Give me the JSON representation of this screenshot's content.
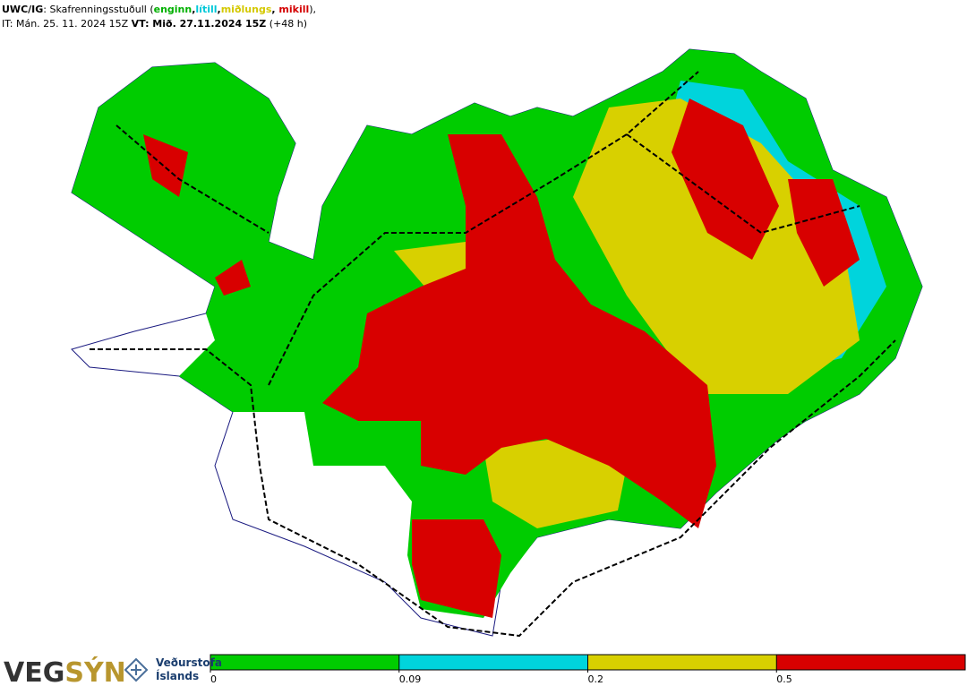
{
  "header": {
    "line1": [
      {
        "text": "UWC/IG",
        "bold": true,
        "color": "#000000"
      },
      {
        "text": ": Skafrenningsstuðull (",
        "bold": false,
        "color": "#000000"
      },
      {
        "text": "enginn",
        "bold": true,
        "color": "#00b000"
      },
      {
        "text": ",",
        "bold": true,
        "color": "#000000"
      },
      {
        "text": "lítill",
        "bold": true,
        "color": "#00c8d8"
      },
      {
        "text": ",",
        "bold": true,
        "color": "#000000"
      },
      {
        "text": "miðlungs",
        "bold": true,
        "color": "#d4c800"
      },
      {
        "text": ", ",
        "bold": true,
        "color": "#000000"
      },
      {
        "text": "mikill",
        "bold": true,
        "color": "#d40000"
      },
      {
        "text": "),",
        "bold": false,
        "color": "#000000"
      }
    ],
    "line2": [
      {
        "text": "IT: Mán. 25. 11. 2024 15Z ",
        "bold": false,
        "color": "#000000"
      },
      {
        "text": "VT: Mið. 27.11.2024 15Z",
        "bold": true,
        "color": "#000000"
      },
      {
        "text": " (+48 h)",
        "bold": false,
        "color": "#000000"
      }
    ]
  },
  "legend": {
    "colors": [
      "#00cc00",
      "#00d4dc",
      "#d8d000",
      "#d80000"
    ],
    "ticks": [
      0,
      0.09,
      0.2,
      0.5
    ]
  },
  "logos": {
    "vegsyn_a": "VEG",
    "vegsyn_b": "SÝN",
    "vedurstofa_1": "Veðurstofa",
    "vedurstofa_2": "Íslands"
  }
}
